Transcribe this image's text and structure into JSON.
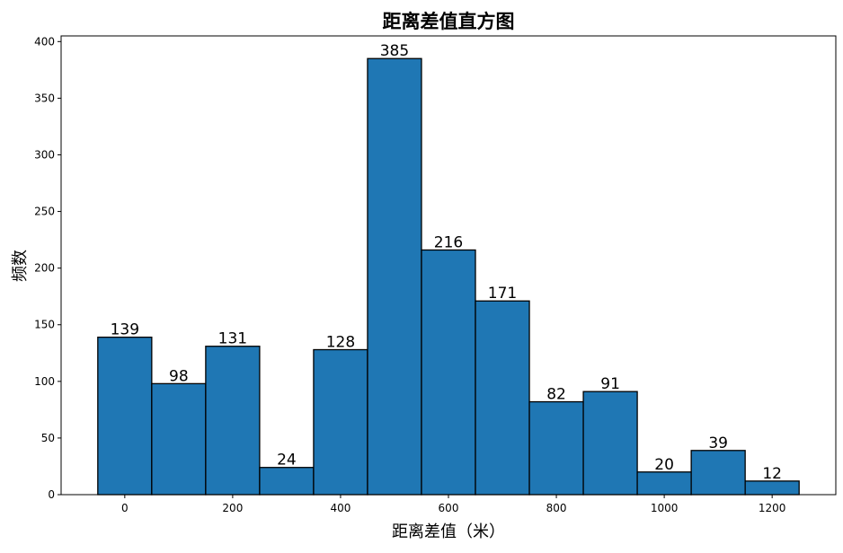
{
  "chart_data": {
    "type": "bar",
    "title": "距离差值直方图",
    "xlabel": "距离差值（米）",
    "ylabel": "频数",
    "bin_width": 100,
    "bin_centers": [
      0,
      100,
      200,
      300,
      400,
      500,
      600,
      700,
      800,
      900,
      1000,
      1100,
      1200
    ],
    "values": [
      139,
      98,
      131,
      24,
      128,
      385,
      216,
      171,
      82,
      91,
      20,
      39,
      12
    ],
    "data_labels": [
      "139",
      "98",
      "131",
      "24",
      "128",
      "385",
      "216",
      "171",
      "82",
      "91",
      "20",
      "39",
      "12"
    ],
    "xlim": [
      -118,
      1318
    ],
    "ylim": [
      0,
      405
    ],
    "xticks": [
      0,
      200,
      400,
      600,
      800,
      1000,
      1200
    ],
    "xtick_labels": [
      "0",
      "200",
      "400",
      "600",
      "800",
      "1000",
      "1200"
    ],
    "yticks": [
      0,
      50,
      100,
      150,
      200,
      250,
      300,
      350,
      400
    ],
    "ytick_labels": [
      "0",
      "50",
      "100",
      "150",
      "200",
      "250",
      "300",
      "350",
      "400"
    ],
    "grid": false,
    "bar_color": "#1f77b4",
    "edge_color": "#000000"
  }
}
